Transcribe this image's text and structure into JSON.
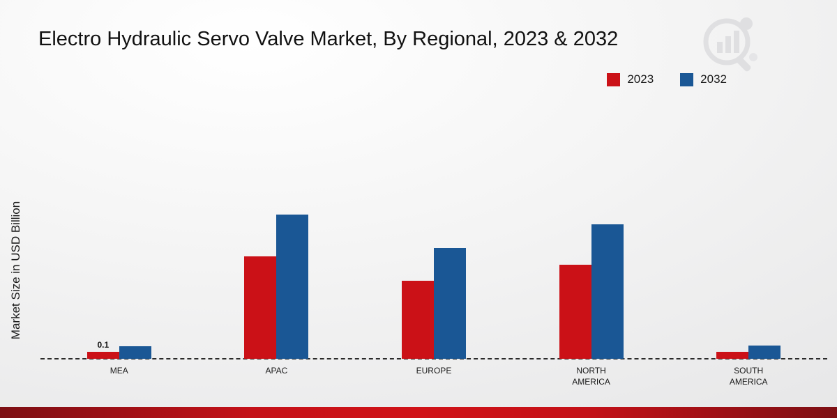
{
  "title": "Electro Hydraulic Servo Valve Market, By Regional, 2023 & 2032",
  "ylabel": "Market Size in USD Billion",
  "legend": [
    {
      "label": "2023",
      "color": "#cb1117"
    },
    {
      "label": "2032",
      "color": "#1a5795"
    }
  ],
  "colors": {
    "series_2023": "#cb1117",
    "series_2032": "#1a5795",
    "footer_red": "#c41118",
    "baseline": "#2a2a2a"
  },
  "chart_data": {
    "type": "bar",
    "title": "Electro Hydraulic Servo Valve Market, By Regional, 2023 & 2032",
    "xlabel": "",
    "ylabel": "Market Size in USD Billion",
    "categories": [
      "MEA",
      "APAC",
      "EUROPE",
      "NORTH AMERICA",
      "SOUTH AMERICA"
    ],
    "series": [
      {
        "name": "2023",
        "color": "#cb1117",
        "values": [
          0.1,
          1.47,
          1.12,
          1.35,
          0.1
        ]
      },
      {
        "name": "2032",
        "color": "#1a5795",
        "values": [
          0.18,
          2.07,
          1.59,
          1.93,
          0.19
        ]
      }
    ],
    "annotations": [
      {
        "category_index": 0,
        "series_index": 0,
        "text": "0.1"
      }
    ],
    "ylim": [
      0,
      2.2
    ],
    "grid": false,
    "y_ticks_visible": false,
    "legend_position": "top-right",
    "baseline_style": "dashed"
  }
}
